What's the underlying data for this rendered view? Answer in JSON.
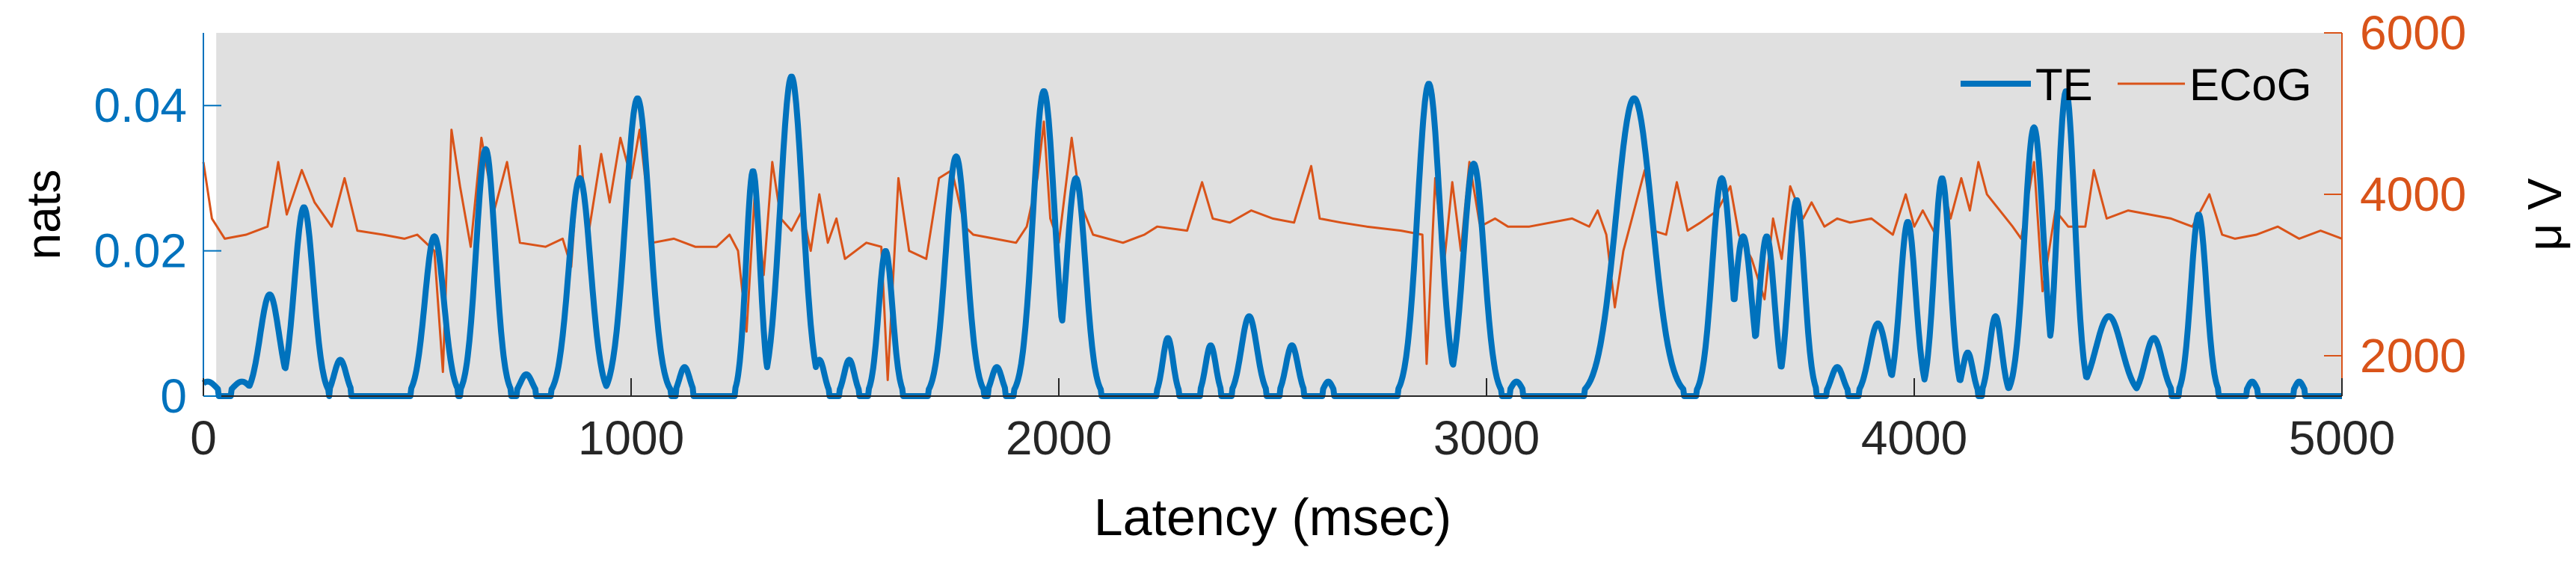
{
  "chart_data": {
    "type": "line",
    "xlabel": "Latency (msec)",
    "xlim": [
      0,
      5000
    ],
    "x_ticks": [
      0,
      1000,
      2000,
      3000,
      4000,
      5000
    ],
    "y_left": {
      "label": "nats",
      "lim": [
        0,
        0.05
      ],
      "ticks": [
        0,
        0.02,
        0.04
      ],
      "tick_labels": [
        "0",
        "0.02",
        "0.04"
      ],
      "color": "#0072BD"
    },
    "y_right": {
      "label": "μ V",
      "lim": [
        1500,
        6000
      ],
      "ticks": [
        2000,
        4000,
        6000
      ],
      "tick_labels": [
        "2000",
        "4000",
        "6000"
      ],
      "color": "#D95319"
    },
    "shaded_region": {
      "x_start": 30,
      "x_end": 5000,
      "color": "#e0e0e0"
    },
    "legend": {
      "location": "top-right",
      "entries": [
        "TE",
        "ECoG"
      ]
    },
    "series": [
      {
        "name": "TE",
        "axis": "left",
        "color": "#0072BD",
        "peaks": [
          [
            10,
            0.002,
            20
          ],
          [
            90,
            0.002,
            20
          ],
          [
            155,
            0.014,
            22
          ],
          [
            235,
            0.026,
            22
          ],
          [
            320,
            0.005,
            14
          ],
          [
            540,
            0.022,
            22
          ],
          [
            660,
            0.034,
            22
          ],
          [
            755,
            0.003,
            14
          ],
          [
            880,
            0.03,
            25
          ],
          [
            1015,
            0.041,
            28
          ],
          [
            1125,
            0.004,
            12
          ],
          [
            1285,
            0.031,
            16
          ],
          [
            1375,
            0.044,
            26
          ],
          [
            1440,
            0.005,
            12
          ],
          [
            1510,
            0.005,
            12
          ],
          [
            1595,
            0.02,
            16
          ],
          [
            1760,
            0.033,
            24
          ],
          [
            1855,
            0.004,
            12
          ],
          [
            1965,
            0.042,
            25
          ],
          [
            2040,
            0.03,
            22
          ],
          [
            2255,
            0.008,
            12
          ],
          [
            2355,
            0.007,
            12
          ],
          [
            2445,
            0.011,
            18
          ],
          [
            2545,
            0.007,
            14
          ],
          [
            2630,
            0.002,
            10
          ],
          [
            2865,
            0.043,
            26
          ],
          [
            2970,
            0.032,
            24
          ],
          [
            3070,
            0.002,
            12
          ],
          [
            3345,
            0.041,
            42
          ],
          [
            3550,
            0.03,
            22
          ],
          [
            3600,
            0.022,
            20
          ],
          [
            3655,
            0.022,
            18
          ],
          [
            3725,
            0.027,
            18
          ],
          [
            3820,
            0.004,
            14
          ],
          [
            3915,
            0.01,
            20
          ],
          [
            3985,
            0.024,
            18
          ],
          [
            4065,
            0.03,
            18
          ],
          [
            4125,
            0.006,
            12
          ],
          [
            4190,
            0.011,
            14
          ],
          [
            4280,
            0.037,
            22
          ],
          [
            4355,
            0.042,
            20
          ],
          [
            4455,
            0.011,
            30
          ],
          [
            4560,
            0.008,
            20
          ],
          [
            4665,
            0.025,
            18
          ],
          [
            4790,
            0.002,
            10
          ],
          [
            4900,
            0.002,
            10
          ]
        ]
      },
      {
        "name": "ECoG",
        "axis": "right",
        "color": "#D95319",
        "points": [
          [
            0,
            4400
          ],
          [
            20,
            3700
          ],
          [
            50,
            3450
          ],
          [
            100,
            3500
          ],
          [
            150,
            3600
          ],
          [
            175,
            4400
          ],
          [
            195,
            3750
          ],
          [
            230,
            4300
          ],
          [
            260,
            3900
          ],
          [
            300,
            3600
          ],
          [
            330,
            4200
          ],
          [
            360,
            3550
          ],
          [
            420,
            3500
          ],
          [
            470,
            3450
          ],
          [
            500,
            3500
          ],
          [
            540,
            3300
          ],
          [
            560,
            1800
          ],
          [
            580,
            4800
          ],
          [
            600,
            4100
          ],
          [
            625,
            3350
          ],
          [
            650,
            4700
          ],
          [
            680,
            3800
          ],
          [
            710,
            4400
          ],
          [
            740,
            3400
          ],
          [
            800,
            3350
          ],
          [
            840,
            3450
          ],
          [
            860,
            3100
          ],
          [
            880,
            4600
          ],
          [
            900,
            3500
          ],
          [
            930,
            4500
          ],
          [
            950,
            3900
          ],
          [
            975,
            4700
          ],
          [
            1000,
            4200
          ],
          [
            1020,
            4800
          ],
          [
            1050,
            3400
          ],
          [
            1100,
            3450
          ],
          [
            1150,
            3350
          ],
          [
            1200,
            3350
          ],
          [
            1230,
            3500
          ],
          [
            1250,
            3300
          ],
          [
            1270,
            2300
          ],
          [
            1290,
            4100
          ],
          [
            1310,
            3000
          ],
          [
            1330,
            4400
          ],
          [
            1350,
            3700
          ],
          [
            1375,
            3550
          ],
          [
            1400,
            3800
          ],
          [
            1420,
            3300
          ],
          [
            1440,
            4000
          ],
          [
            1460,
            3400
          ],
          [
            1480,
            3700
          ],
          [
            1500,
            3200
          ],
          [
            1550,
            3400
          ],
          [
            1585,
            3350
          ],
          [
            1600,
            1700
          ],
          [
            1625,
            4200
          ],
          [
            1650,
            3300
          ],
          [
            1690,
            3200
          ],
          [
            1720,
            4200
          ],
          [
            1750,
            4300
          ],
          [
            1780,
            3600
          ],
          [
            1800,
            3500
          ],
          [
            1850,
            3450
          ],
          [
            1900,
            3400
          ],
          [
            1925,
            3600
          ],
          [
            1950,
            4200
          ],
          [
            1965,
            4900
          ],
          [
            1980,
            3700
          ],
          [
            2000,
            3400
          ],
          [
            2030,
            4700
          ],
          [
            2050,
            3900
          ],
          [
            2080,
            3500
          ],
          [
            2150,
            3400
          ],
          [
            2200,
            3500
          ],
          [
            2230,
            3600
          ],
          [
            2300,
            3550
          ],
          [
            2335,
            4150
          ],
          [
            2360,
            3700
          ],
          [
            2400,
            3650
          ],
          [
            2450,
            3800
          ],
          [
            2500,
            3700
          ],
          [
            2550,
            3650
          ],
          [
            2590,
            4350
          ],
          [
            2610,
            3700
          ],
          [
            2660,
            3650
          ],
          [
            2720,
            3600
          ],
          [
            2800,
            3550
          ],
          [
            2850,
            3500
          ],
          [
            2860,
            1900
          ],
          [
            2880,
            4200
          ],
          [
            2900,
            3100
          ],
          [
            2920,
            4150
          ],
          [
            2940,
            3300
          ],
          [
            2960,
            4400
          ],
          [
            2985,
            3600
          ],
          [
            3020,
            3700
          ],
          [
            3050,
            3600
          ],
          [
            3100,
            3600
          ],
          [
            3150,
            3650
          ],
          [
            3200,
            3700
          ],
          [
            3240,
            3600
          ],
          [
            3260,
            3800
          ],
          [
            3280,
            3500
          ],
          [
            3300,
            2600
          ],
          [
            3320,
            3300
          ],
          [
            3340,
            3700
          ],
          [
            3370,
            4300
          ],
          [
            3390,
            3550
          ],
          [
            3420,
            3500
          ],
          [
            3445,
            4150
          ],
          [
            3470,
            3550
          ],
          [
            3500,
            3650
          ],
          [
            3540,
            3800
          ],
          [
            3570,
            4100
          ],
          [
            3590,
            3500
          ],
          [
            3620,
            3200
          ],
          [
            3650,
            2700
          ],
          [
            3670,
            3700
          ],
          [
            3690,
            3200
          ],
          [
            3710,
            4100
          ],
          [
            3740,
            3700
          ],
          [
            3760,
            3900
          ],
          [
            3790,
            3600
          ],
          [
            3820,
            3700
          ],
          [
            3850,
            3650
          ],
          [
            3900,
            3700
          ],
          [
            3950,
            3500
          ],
          [
            3980,
            4000
          ],
          [
            4000,
            3600
          ],
          [
            4020,
            3800
          ],
          [
            4050,
            3500
          ],
          [
            4065,
            4200
          ],
          [
            4085,
            3700
          ],
          [
            4110,
            4200
          ],
          [
            4130,
            3800
          ],
          [
            4150,
            4400
          ],
          [
            4170,
            4000
          ],
          [
            4200,
            3800
          ],
          [
            4230,
            3600
          ],
          [
            4250,
            3450
          ],
          [
            4280,
            4400
          ],
          [
            4300,
            2800
          ],
          [
            4330,
            3800
          ],
          [
            4360,
            3600
          ],
          [
            4400,
            3600
          ],
          [
            4420,
            4300
          ],
          [
            4450,
            3700
          ],
          [
            4500,
            3800
          ],
          [
            4550,
            3750
          ],
          [
            4600,
            3700
          ],
          [
            4650,
            3600
          ],
          [
            4690,
            4000
          ],
          [
            4720,
            3500
          ],
          [
            4750,
            3450
          ],
          [
            4800,
            3500
          ],
          [
            4850,
            3600
          ],
          [
            4900,
            3450
          ],
          [
            4950,
            3550
          ],
          [
            5000,
            3450
          ]
        ]
      }
    ]
  }
}
